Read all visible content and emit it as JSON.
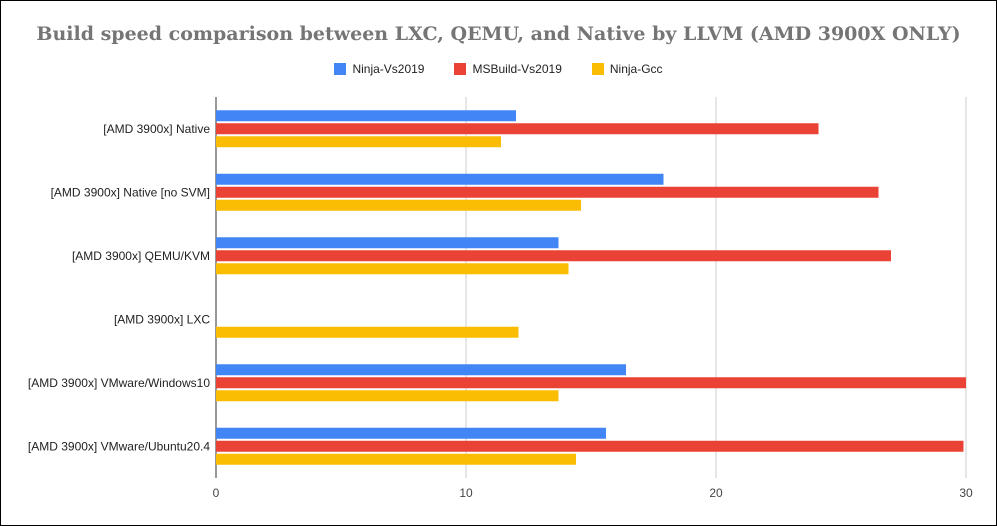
{
  "chart_data": {
    "type": "bar",
    "orientation": "horizontal",
    "title": "Build speed comparison between LXC, QEMU, and Native by LLVM (AMD 3900X ONLY)",
    "xlabel": "",
    "ylabel": "",
    "categories": [
      "[AMD 3900x] Native",
      "[AMD 3900x] Native [no SVM]",
      "[AMD 3900x] QEMU/KVM",
      "[AMD 3900x] LXC",
      "[AMD 3900x] VMware/Windows10",
      "[AMD 3900x] VMware/Ubuntu20.4"
    ],
    "series": [
      {
        "name": "Ninja-Vs2019",
        "color": "#4285f4",
        "values": [
          12.0,
          17.9,
          13.7,
          null,
          16.4,
          15.6
        ]
      },
      {
        "name": "MSBuild-Vs2019",
        "color": "#ea4335",
        "values": [
          24.1,
          26.5,
          27.0,
          null,
          30.0,
          29.9
        ]
      },
      {
        "name": "Ninja-Gcc",
        "color": "#fbbc04",
        "values": [
          11.4,
          14.6,
          14.1,
          12.1,
          13.7,
          14.4
        ]
      }
    ],
    "xlim": [
      0,
      30
    ],
    "ticks": [
      0,
      10,
      20,
      30
    ],
    "tick_labels": [
      "0",
      "10",
      "20",
      "30"
    ],
    "grid": true,
    "legend_position": "top"
  }
}
